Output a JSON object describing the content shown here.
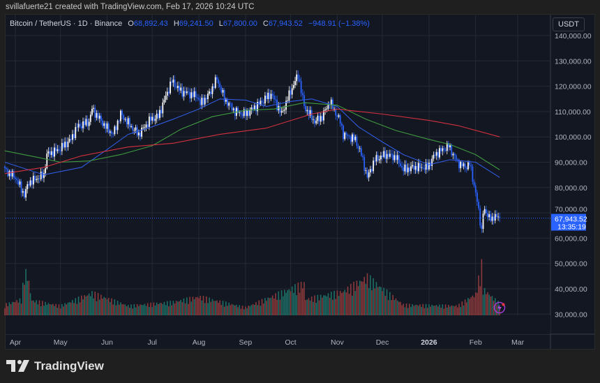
{
  "header": {
    "credit": "svillafuerte21 created with TradingView.com, Feb 17, 2026 10:24 UTC"
  },
  "legend": {
    "symbol": "Bitcoin / TetherUS · 1D · Binance",
    "open_label": "O",
    "open": "68,892.43",
    "high_label": "H",
    "high": "69,241.50",
    "low_label": "L",
    "low": "67,800.00",
    "close_label": "C",
    "close": "67,943.52",
    "change": "−948.91 (−1.38%)"
  },
  "price_axis": {
    "currency": "USDT",
    "current_price": "67,943.52",
    "countdown": "13:35:19"
  },
  "brand": {
    "name": "TradingView"
  },
  "colors": {
    "up_candle": "#ffffff",
    "down_candle": "#2962ff",
    "ma_blue": "#2f5be0",
    "ma_green": "#3f9a3f",
    "ma_red": "#d4303f",
    "vol_up": "#1d6f66",
    "vol_down": "#8d3a3c",
    "price_tag": "#2962ff"
  },
  "chart_data": {
    "type": "candlestick",
    "ylim": [
      30000,
      145000
    ],
    "y_ticks": [
      "140,000.00",
      "130,000.00",
      "120,000.00",
      "110,000.00",
      "100,000.00",
      "90,000.00",
      "80,000.00",
      "70,000.00",
      "60,000.00",
      "50,000.00",
      "40,000.00",
      "30,000.00"
    ],
    "y_tick_values": [
      140000,
      130000,
      120000,
      110000,
      100000,
      90000,
      80000,
      70000,
      60000,
      50000,
      40000,
      30000
    ],
    "x_ticks": [
      {
        "label": "Apr",
        "date": "2025-04-01"
      },
      {
        "label": "May",
        "date": "2025-05-01"
      },
      {
        "label": "Jun",
        "date": "2025-06-01"
      },
      {
        "label": "Jul",
        "date": "2025-07-01"
      },
      {
        "label": "Aug",
        "date": "2025-08-01"
      },
      {
        "label": "Sep",
        "date": "2025-09-01"
      },
      {
        "label": "Oct",
        "date": "2025-10-01"
      },
      {
        "label": "Nov",
        "date": "2025-11-01"
      },
      {
        "label": "Dec",
        "date": "2025-12-01"
      },
      {
        "label": "2026",
        "date": "2026-01-01",
        "bold": true
      },
      {
        "label": "Feb",
        "date": "2026-02-01"
      },
      {
        "label": "Mar",
        "date": "2026-03-01"
      }
    ],
    "x_range": [
      "2025-03-19",
      "2026-03-18"
    ],
    "grid": true,
    "close_path": [
      [
        "2025-03-25",
        87000
      ],
      [
        "2025-04-01",
        84000
      ],
      [
        "2025-04-07",
        77000
      ],
      [
        "2025-04-10",
        82000
      ],
      [
        "2025-04-20",
        85000
      ],
      [
        "2025-04-22",
        93000
      ],
      [
        "2025-04-30",
        95000
      ],
      [
        "2025-05-08",
        99000
      ],
      [
        "2025-05-12",
        104000
      ],
      [
        "2025-05-20",
        106000
      ],
      [
        "2025-05-22",
        111000
      ],
      [
        "2025-05-31",
        104000
      ],
      [
        "2025-06-05",
        101000
      ],
      [
        "2025-06-10",
        109000
      ],
      [
        "2025-06-17",
        104000
      ],
      [
        "2025-06-22",
        101000
      ],
      [
        "2025-06-30",
        107000
      ],
      [
        "2025-07-05",
        108000
      ],
      [
        "2025-07-10",
        116000
      ],
      [
        "2025-07-14",
        122000
      ],
      [
        "2025-07-20",
        118000
      ],
      [
        "2025-07-31",
        116000
      ],
      [
        "2025-08-02",
        113000
      ],
      [
        "2025-08-08",
        117000
      ],
      [
        "2025-08-13",
        123000
      ],
      [
        "2025-08-18",
        115000
      ],
      [
        "2025-08-25",
        110000
      ],
      [
        "2025-09-01",
        109000
      ],
      [
        "2025-09-10",
        113000
      ],
      [
        "2025-09-18",
        117000
      ],
      [
        "2025-09-25",
        109000
      ],
      [
        "2025-10-01",
        118000
      ],
      [
        "2025-10-06",
        124500
      ],
      [
        "2025-10-10",
        112000
      ],
      [
        "2025-10-17",
        106000
      ],
      [
        "2025-10-22",
        108000
      ],
      [
        "2025-10-27",
        114000
      ],
      [
        "2025-11-03",
        106000
      ],
      [
        "2025-11-05",
        101000
      ],
      [
        "2025-11-13",
        99000
      ],
      [
        "2025-11-17",
        93000
      ],
      [
        "2025-11-21",
        84000
      ],
      [
        "2025-11-26",
        91000
      ],
      [
        "2025-12-03",
        93000
      ],
      [
        "2025-12-10",
        92000
      ],
      [
        "2025-12-15",
        87000
      ],
      [
        "2025-12-22",
        88000
      ],
      [
        "2025-12-31",
        88000
      ],
      [
        "2026-01-05",
        93000
      ],
      [
        "2026-01-14",
        96500
      ],
      [
        "2026-01-20",
        90000
      ],
      [
        "2026-01-25",
        88000
      ],
      [
        "2026-01-28",
        89500
      ],
      [
        "2026-02-01",
        78000
      ],
      [
        "2026-02-05",
        63000
      ],
      [
        "2026-02-06",
        70500
      ],
      [
        "2026-02-10",
        69000
      ],
      [
        "2026-02-12",
        66500
      ],
      [
        "2026-02-14",
        69500
      ],
      [
        "2026-02-17",
        67943.52
      ]
    ],
    "series": [
      {
        "values": [
          [
            "2025-03-25",
            90000
          ],
          [
            "2025-04-20",
            85000
          ],
          [
            "2025-05-15",
            88000
          ],
          [
            "2025-06-01",
            95000
          ],
          [
            "2025-06-15",
            101000
          ],
          [
            "2025-07-01",
            104000
          ],
          [
            "2025-07-15",
            107000
          ],
          [
            "2025-08-01",
            111000
          ],
          [
            "2025-08-15",
            115000
          ],
          [
            "2025-09-01",
            114500
          ],
          [
            "2025-09-15",
            112000
          ],
          [
            "2025-10-01",
            114000
          ],
          [
            "2025-10-15",
            115000
          ],
          [
            "2025-11-01",
            112000
          ],
          [
            "2025-11-15",
            104000
          ],
          [
            "2025-12-01",
            98000
          ],
          [
            "2025-12-15",
            93000
          ],
          [
            "2026-01-01",
            89000
          ],
          [
            "2026-01-15",
            91000
          ],
          [
            "2026-02-01",
            90000
          ],
          [
            "2026-02-17",
            84000
          ]
        ],
        "color": "#2f5be0"
      },
      {
        "values": [
          [
            "2025-03-25",
            94500
          ],
          [
            "2025-04-15",
            92000
          ],
          [
            "2025-05-01",
            90000
          ],
          [
            "2025-05-20",
            90500
          ],
          [
            "2025-06-10",
            93000
          ],
          [
            "2025-07-01",
            96500
          ],
          [
            "2025-07-20",
            103000
          ],
          [
            "2025-08-10",
            108000
          ],
          [
            "2025-09-01",
            110500
          ],
          [
            "2025-09-20",
            111000
          ],
          [
            "2025-10-10",
            113500
          ],
          [
            "2025-11-01",
            112500
          ],
          [
            "2025-11-20",
            107000
          ],
          [
            "2025-12-10",
            102500
          ],
          [
            "2026-01-01",
            99000
          ],
          [
            "2026-01-15",
            97000
          ],
          [
            "2026-02-01",
            93000
          ],
          [
            "2026-02-17",
            87000
          ]
        ],
        "color": "#3f9a3f"
      },
      {
        "values": [
          [
            "2025-03-25",
            85500
          ],
          [
            "2025-04-20",
            88000
          ],
          [
            "2025-05-15",
            92500
          ],
          [
            "2025-06-15",
            96000
          ],
          [
            "2025-07-15",
            97500
          ],
          [
            "2025-08-15",
            101000
          ],
          [
            "2025-09-15",
            103500
          ],
          [
            "2025-10-15",
            109000
          ],
          [
            "2025-11-01",
            111000
          ],
          [
            "2025-12-01",
            109000
          ],
          [
            "2026-01-01",
            106500
          ],
          [
            "2026-01-20",
            104500
          ],
          [
            "2026-02-17",
            100000
          ]
        ],
        "color": "#d4303f"
      }
    ],
    "volume_relative": [
      [
        "2025-03-25",
        20
      ],
      [
        "2025-04-05",
        30
      ],
      [
        "2025-04-07",
        80
      ],
      [
        "2025-04-09",
        78
      ],
      [
        "2025-04-12",
        28
      ],
      [
        "2025-05-01",
        18
      ],
      [
        "2025-05-22",
        42
      ],
      [
        "2025-06-15",
        18
      ],
      [
        "2025-07-15",
        25
      ],
      [
        "2025-08-01",
        35
      ],
      [
        "2025-09-01",
        15
      ],
      [
        "2025-10-10",
        60
      ],
      [
        "2025-10-11",
        30
      ],
      [
        "2025-11-05",
        45
      ],
      [
        "2025-11-21",
        72
      ],
      [
        "2025-12-15",
        20
      ],
      [
        "2026-01-20",
        18
      ],
      [
        "2026-02-01",
        40
      ],
      [
        "2026-02-05",
        95
      ],
      [
        "2026-02-06",
        50
      ],
      [
        "2026-02-17",
        22
      ]
    ]
  }
}
